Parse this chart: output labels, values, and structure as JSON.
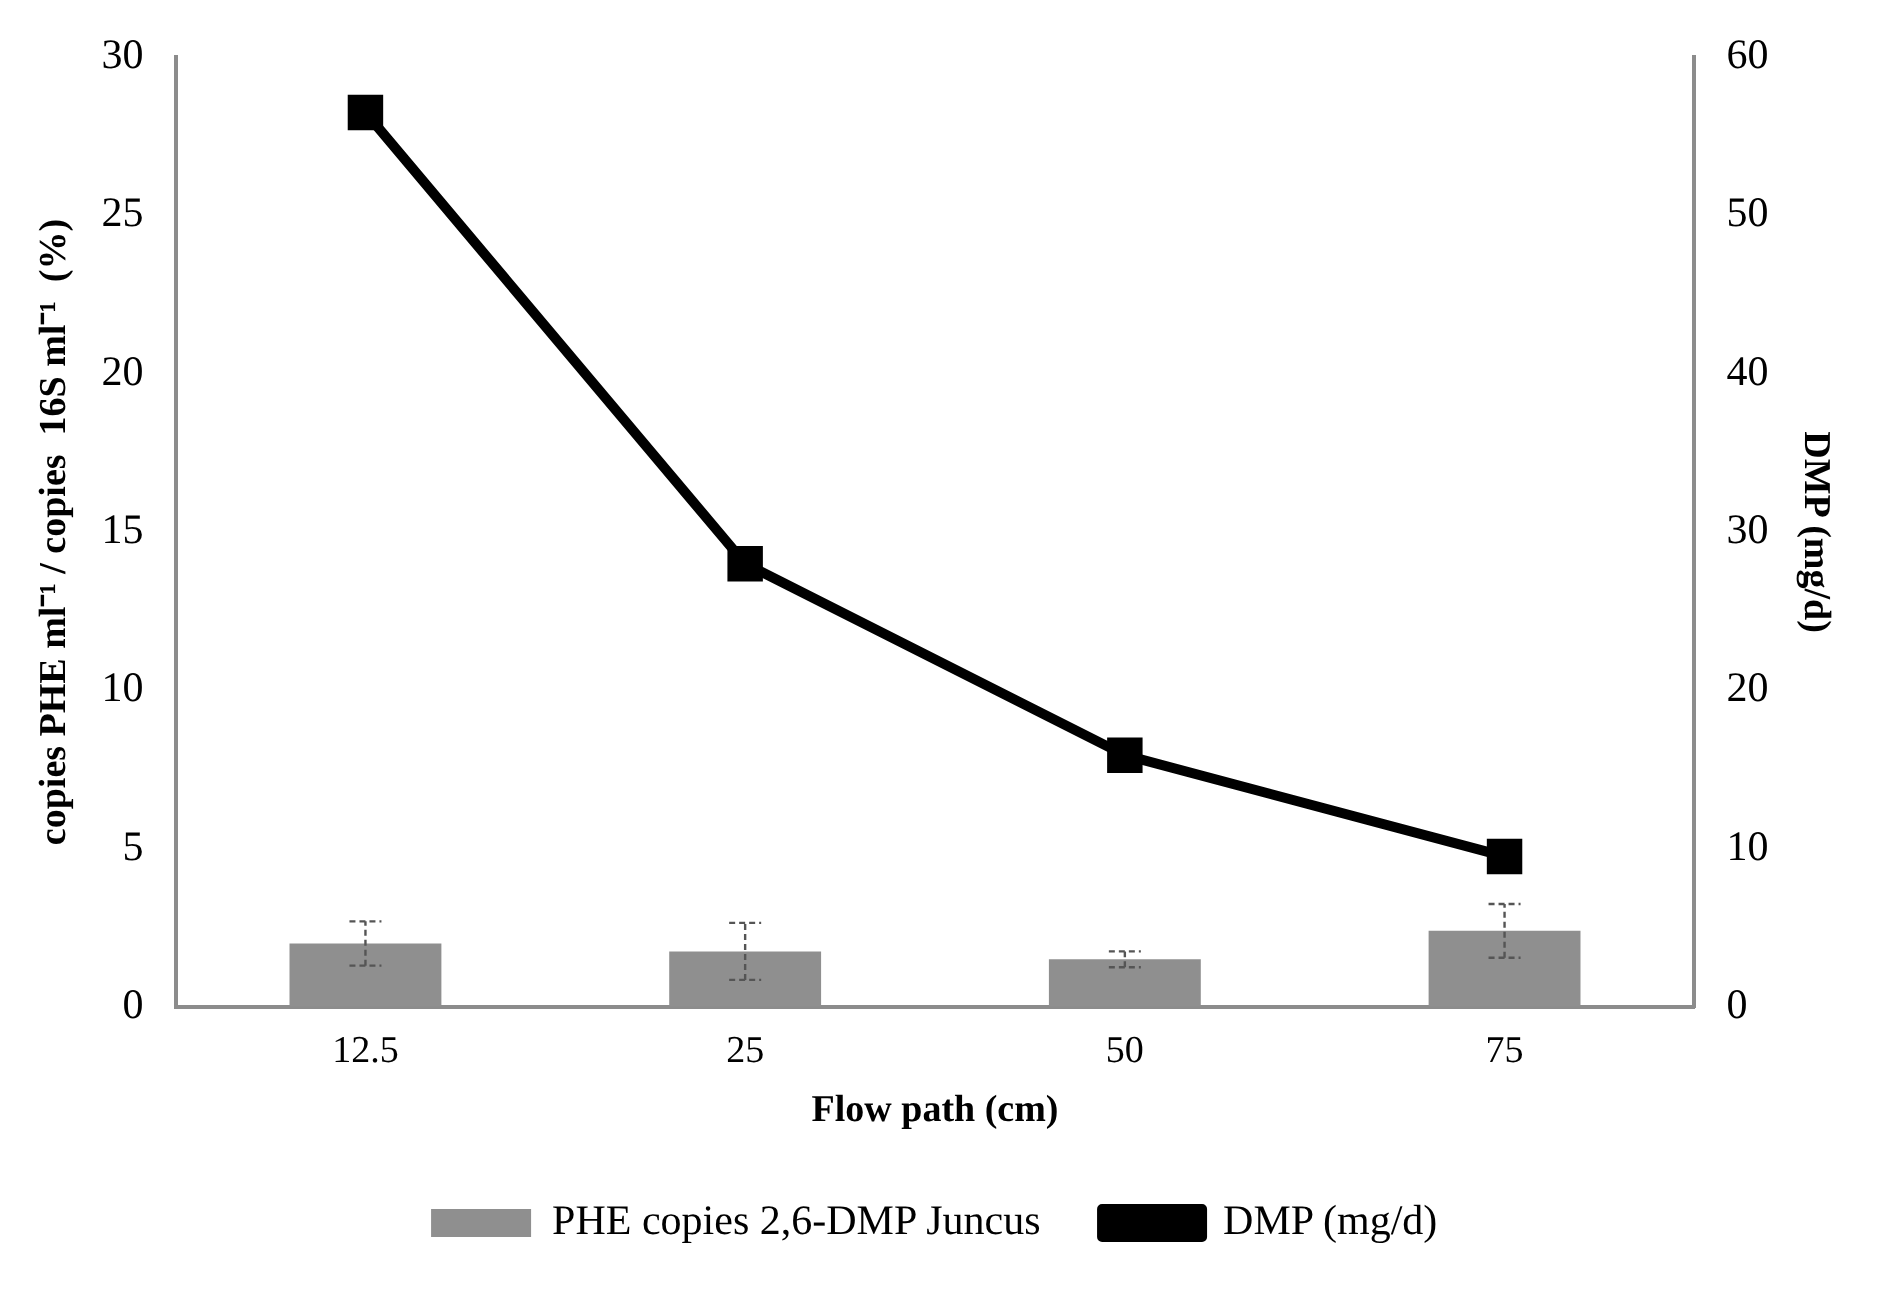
{
  "chart_data": {
    "type": "bar",
    "xlabel": "Flow path (cm)",
    "ylabel": "copies PHE ml⁻¹ / copies  16S ml⁻¹  (%)",
    "y2label": "DMP (mg/d)",
    "categories": [
      "12.5",
      "25",
      "50",
      "75"
    ],
    "series": [
      {
        "name": "PHE copies 2,6-DMP Juncus",
        "color": "#8f8f8f",
        "values": [
          2.0,
          1.75,
          1.5,
          2.4
        ],
        "errors": [
          0.7,
          0.9,
          0.25,
          0.85
        ]
      },
      {
        "name": "DMP (mg/d)",
        "type": "line",
        "axis": "y2",
        "color": "#000000",
        "marker": "square",
        "values": [
          56.5,
          28,
          15.9,
          9.5
        ]
      }
    ],
    "ylim": [
      0,
      30
    ],
    "yticks": [
      0,
      5,
      10,
      15,
      20,
      25,
      30
    ],
    "y2lim": [
      0,
      60
    ],
    "y2ticks": [
      0,
      10,
      20,
      30,
      40,
      50,
      60
    ],
    "grid": false,
    "legend": "bottom"
  }
}
